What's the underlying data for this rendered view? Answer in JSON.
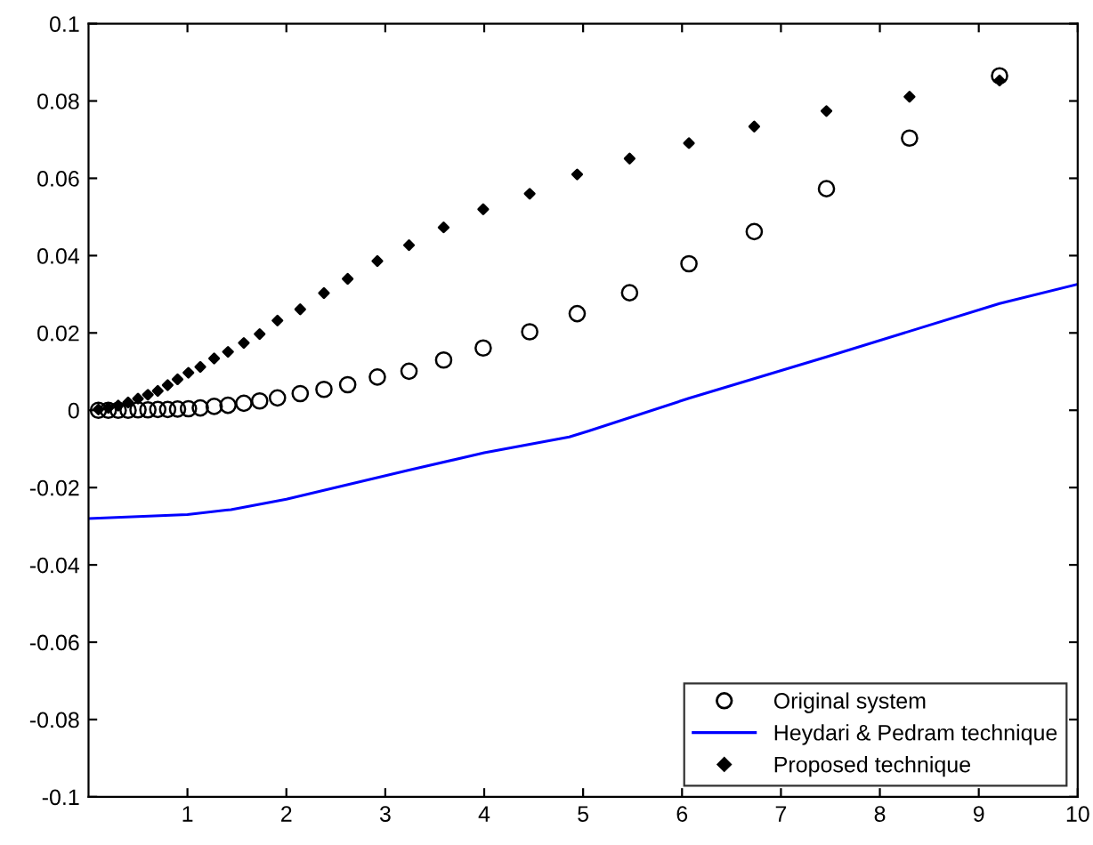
{
  "chart_data": {
    "type": "scatter",
    "xlim": [
      0,
      10
    ],
    "ylim": [
      -0.1,
      0.1
    ],
    "xticks": [
      1,
      2,
      3,
      4,
      5,
      6,
      7,
      8,
      9,
      10
    ],
    "yticks": [
      -0.1,
      -0.08,
      -0.06,
      -0.04,
      -0.02,
      0,
      0.02,
      0.04,
      0.06,
      0.08,
      0.1
    ],
    "grid": false,
    "legend": "bottom right",
    "series": [
      {
        "name": "Original system",
        "marker": "circle",
        "color": "#000000",
        "x": [
          0.1,
          0.2,
          0.3,
          0.4,
          0.5,
          0.6,
          0.7,
          0.8,
          0.9,
          1.01,
          1.13,
          1.27,
          1.41,
          1.57,
          1.73,
          1.91,
          2.14,
          2.38,
          2.62,
          2.92,
          3.24,
          3.59,
          3.99,
          4.46,
          4.94,
          5.47,
          6.07,
          6.73,
          7.46,
          8.3,
          9.21
        ],
        "values": [
          0,
          0,
          0,
          0,
          0.0001,
          0.0001,
          0.0002,
          0.0002,
          0.0003,
          0.0004,
          0.0006,
          0.001,
          0.0013,
          0.0018,
          0.0024,
          0.0032,
          0.0043,
          0.0054,
          0.0066,
          0.0086,
          0.0101,
          0.013,
          0.0161,
          0.0203,
          0.025,
          0.0304,
          0.0379,
          0.0462,
          0.0573,
          0.0704,
          0.0865
        ]
      },
      {
        "name": "Heydari & Pedram technique",
        "type": "line",
        "marker": "none",
        "line_style": "solid",
        "color": "#0000ff",
        "x": [
          0,
          1,
          1.44,
          2,
          3.24,
          4,
          4.86,
          5.05,
          6.07,
          7.46,
          9.21,
          10
        ],
        "values": [
          -0.028,
          -0.027,
          -0.0257,
          -0.023,
          -0.0155,
          -0.011,
          -0.0069,
          -0.0054,
          0.0031,
          0.0138,
          0.0276,
          0.0326
        ]
      },
      {
        "name": "Proposed technique",
        "marker": "diamond",
        "color": "#000000",
        "x": [
          0.1,
          0.2,
          0.3,
          0.4,
          0.5,
          0.6,
          0.7,
          0.8,
          0.9,
          1.01,
          1.13,
          1.27,
          1.41,
          1.57,
          1.73,
          1.91,
          2.14,
          2.38,
          2.62,
          2.92,
          3.24,
          3.59,
          3.99,
          4.46,
          4.94,
          5.47,
          6.07,
          6.73,
          7.46,
          8.3,
          9.21
        ],
        "values": [
          0.0002,
          0.0006,
          0.0012,
          0.002,
          0.003,
          0.004,
          0.005,
          0.0065,
          0.008,
          0.0097,
          0.0112,
          0.0134,
          0.0151,
          0.0174,
          0.0197,
          0.0232,
          0.0261,
          0.0303,
          0.034,
          0.0386,
          0.0427,
          0.0473,
          0.052,
          0.056,
          0.061,
          0.0651,
          0.0691,
          0.0734,
          0.0774,
          0.0811,
          0.0853
        ]
      }
    ]
  }
}
